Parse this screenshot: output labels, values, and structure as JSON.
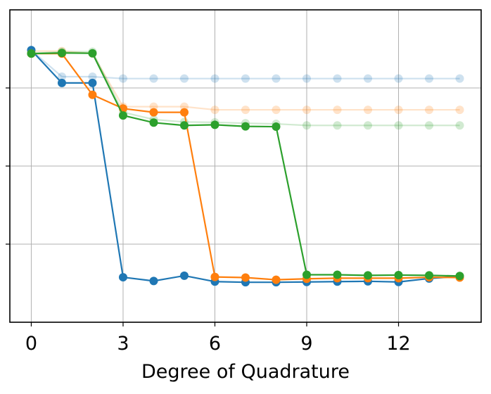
{
  "chart_data": {
    "type": "line",
    "xlabel": "Degree of Quadrature",
    "ylabel": "",
    "xlim": [
      -0.7,
      14.7
    ],
    "ylim": [
      0,
      1.0
    ],
    "xticks": [
      0,
      3,
      6,
      9,
      12
    ],
    "yticks": [
      0.25,
      0.5,
      0.75
    ],
    "ytick_labels_visible": false,
    "grid": true,
    "x": [
      0,
      1,
      2,
      3,
      4,
      5,
      6,
      7,
      8,
      9,
      10,
      11,
      12,
      13,
      14
    ],
    "series": [
      {
        "color": "#1f77b4",
        "style": "solid",
        "values": [
          0.871,
          0.766,
          0.766,
          0.144,
          0.132,
          0.149,
          0.13,
          0.128,
          0.128,
          0.129,
          0.13,
          0.131,
          0.129,
          0.14,
          0.147
        ]
      },
      {
        "color": "#ff7f0e",
        "style": "solid",
        "values": [
          0.86,
          0.86,
          0.728,
          0.684,
          0.672,
          0.672,
          0.145,
          0.143,
          0.136,
          0.139,
          0.141,
          0.141,
          0.141,
          0.144,
          0.143
        ]
      },
      {
        "color": "#2ca02c",
        "style": "solid",
        "values": [
          0.86,
          0.862,
          0.861,
          0.662,
          0.639,
          0.63,
          0.632,
          0.627,
          0.626,
          0.152,
          0.152,
          0.15,
          0.151,
          0.15,
          0.148
        ]
      },
      {
        "color": "#1f77b4",
        "style": "faded",
        "values": [
          0.871,
          0.786,
          0.786,
          0.78,
          0.78,
          0.78,
          0.78,
          0.78,
          0.78,
          0.78,
          0.78,
          0.78,
          0.78,
          0.78,
          0.78
        ]
      },
      {
        "color": "#ff7f0e",
        "style": "faded",
        "values": [
          0.868,
          0.868,
          0.86,
          0.69,
          0.69,
          0.69,
          0.68,
          0.68,
          0.68,
          0.68,
          0.68,
          0.68,
          0.68,
          0.68,
          0.68
        ]
      },
      {
        "color": "#2ca02c",
        "style": "faded",
        "values": [
          0.86,
          0.866,
          0.866,
          0.672,
          0.649,
          0.641,
          0.64,
          0.637,
          0.635,
          0.63,
          0.63,
          0.63,
          0.63,
          0.63,
          0.63
        ]
      }
    ]
  }
}
